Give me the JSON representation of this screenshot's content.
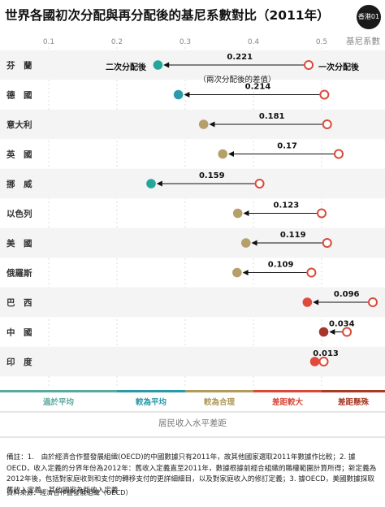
{
  "chart_data": {
    "type": "dumbbell",
    "title": "世界各國初次分配與再分配後的基尼系數對比（2011年）",
    "axis_name": "基尼系數",
    "xlim": [
      0.0,
      0.5
    ],
    "ticks": [
      0.1,
      0.2,
      0.3,
      0.4,
      0.5
    ],
    "tick_labels": [
      "0.1",
      "0.2",
      "0.3",
      "0.4",
      "0.5"
    ],
    "x_axis_label": "居民收入水平差距",
    "legend_after": "二次分配後",
    "legend_before": "一次分配後",
    "legend_note": "（兩次分配後的差值）",
    "rows": [
      {
        "country": "芬　蘭",
        "before": 0.481,
        "after": 0.26,
        "diff": "0.221"
      },
      {
        "country": "德　國",
        "before": 0.504,
        "after": 0.29,
        "diff": "0.214"
      },
      {
        "country": "意大利",
        "before": 0.508,
        "after": 0.327,
        "diff": "0.181"
      },
      {
        "country": "英　國",
        "before": 0.525,
        "after": 0.355,
        "diff": "0.17"
      },
      {
        "country": "挪　威",
        "before": 0.409,
        "after": 0.25,
        "diff": "0.159"
      },
      {
        "country": "以色列",
        "before": 0.5,
        "after": 0.377,
        "diff": "0.123"
      },
      {
        "country": "美　國",
        "before": 0.508,
        "after": 0.389,
        "diff": "0.119"
      },
      {
        "country": "俄羅斯",
        "before": 0.485,
        "after": 0.376,
        "diff": "0.109"
      },
      {
        "country": "巴　西",
        "before": 0.575,
        "after": 0.479,
        "diff": "0.096"
      },
      {
        "country": "中　國",
        "before": 0.537,
        "after": 0.503,
        "diff": "0.034"
      },
      {
        "country": "印　度",
        "before": 0.503,
        "after": 0.49,
        "diff": "0.013"
      }
    ],
    "bands": [
      {
        "label": "過於平均",
        "from": 0.0,
        "to": 0.2,
        "color": "#5aa9a0"
      },
      {
        "label": "較為平均",
        "from": 0.2,
        "to": 0.3,
        "color": "#2c9aa8"
      },
      {
        "label": "較為合理",
        "from": 0.3,
        "to": 0.4,
        "color": "#b09a5c"
      },
      {
        "label": "差距較大",
        "from": 0.4,
        "to": 0.5,
        "color": "#d94a3b"
      },
      {
        "label": "差距懸殊",
        "from": 0.5,
        "to": 0.6,
        "color": "#a83a26"
      }
    ]
  },
  "colors": {
    "after_teal": "#26a69a",
    "after_green": "#2b9bab",
    "after_khaki": "#b5a06a",
    "after_red": "#e04a3a",
    "after_darkred": "#a8342a",
    "before_ring": "#d94a3b"
  },
  "logo_text": "香港01",
  "notes": "備註：1.　由於經濟合作暨發展組織(OECD)的中國數據只有2011年，故其他國家選取2011年數據作比較；2. 據OECD，收入定義的分界年份為2012年：舊收入定義直至2011年，數據根據前經合組織的職權範圍計算所得；新定義為2012年後，包括對家庭收到和支付的轉移支付的更詳細細目，以及對家庭收入的修訂定義；3. 據OECD，美國數據採取舊收入定義，其他國家為新收入定義",
  "source": "資料來源：經濟合作暨發展組織（OECD）"
}
